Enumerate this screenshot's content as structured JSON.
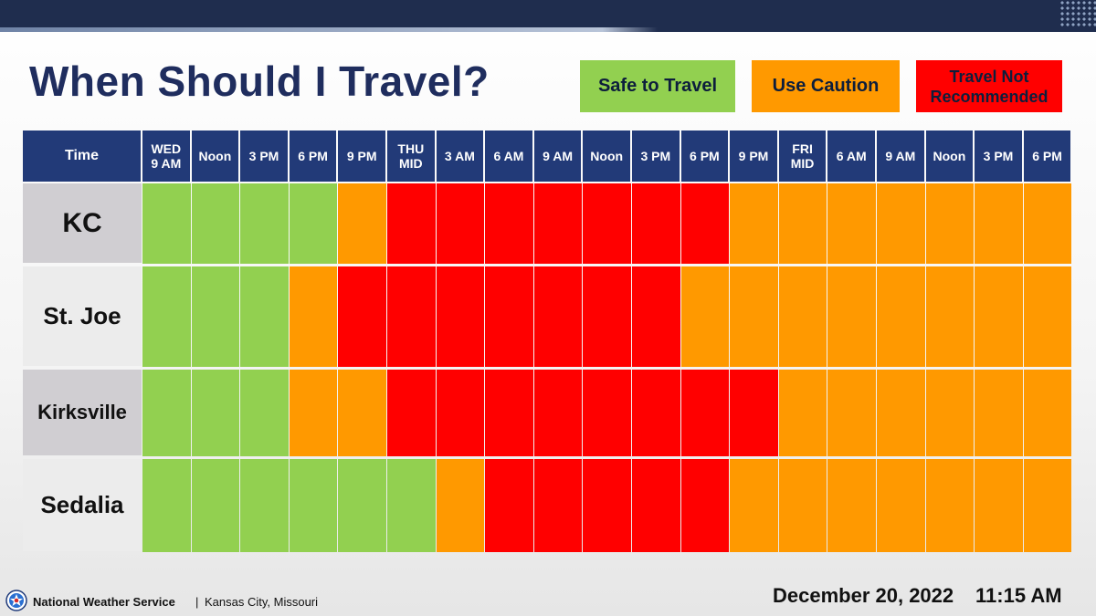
{
  "title": "When Should I Travel?",
  "legend": {
    "safe": "Safe to Travel",
    "caution": "Use Caution",
    "not_recommended": "Travel Not\nRecommended"
  },
  "colors": {
    "safe": "#92d050",
    "caution": "#ff9900",
    "not_recommended": "#ff0000",
    "header": "#223a78",
    "row_label_dark": "#d0ced2",
    "row_label_light": "#ececec"
  },
  "chart_data": {
    "type": "heatmap",
    "title": "When Should I Travel?",
    "corner_label": "Time",
    "columns": [
      "WED\n9 AM",
      "Noon",
      "3 PM",
      "6 PM",
      "9 PM",
      "THU\nMID",
      "3 AM",
      "6 AM",
      "9 AM",
      "Noon",
      "3 PM",
      "6 PM",
      "9 PM",
      "FRI\nMID",
      "6 AM",
      "9 AM",
      "Noon",
      "3 PM",
      "6 PM"
    ],
    "rows": [
      "KC",
      "St. Joe",
      "Kirksville",
      "Sedalia"
    ],
    "categories": {
      "S": "Safe to Travel",
      "C": "Use Caution",
      "N": "Travel Not Recommended"
    },
    "values": [
      [
        "S",
        "S",
        "S",
        "S",
        "C",
        "N",
        "N",
        "N",
        "N",
        "N",
        "N",
        "N",
        "C",
        "C",
        "C",
        "C",
        "C",
        "C",
        "C"
      ],
      [
        "S",
        "S",
        "S",
        "C",
        "N",
        "N",
        "N",
        "N",
        "N",
        "N",
        "N",
        "C",
        "C",
        "C",
        "C",
        "C",
        "C",
        "C",
        "C"
      ],
      [
        "S",
        "S",
        "S",
        "C",
        "C",
        "N",
        "N",
        "N",
        "N",
        "N",
        "N",
        "N",
        "N",
        "C",
        "C",
        "C",
        "C",
        "C",
        "C"
      ],
      [
        "S",
        "S",
        "S",
        "S",
        "S",
        "S",
        "C",
        "N",
        "N",
        "N",
        "N",
        "N",
        "C",
        "C",
        "C",
        "C",
        "C",
        "C",
        "C"
      ]
    ]
  },
  "footer": {
    "org": "National Weather Service",
    "separator": "|",
    "location": "Kansas City, Missouri",
    "date": "December 20, 2022",
    "time": "11:15 AM"
  }
}
